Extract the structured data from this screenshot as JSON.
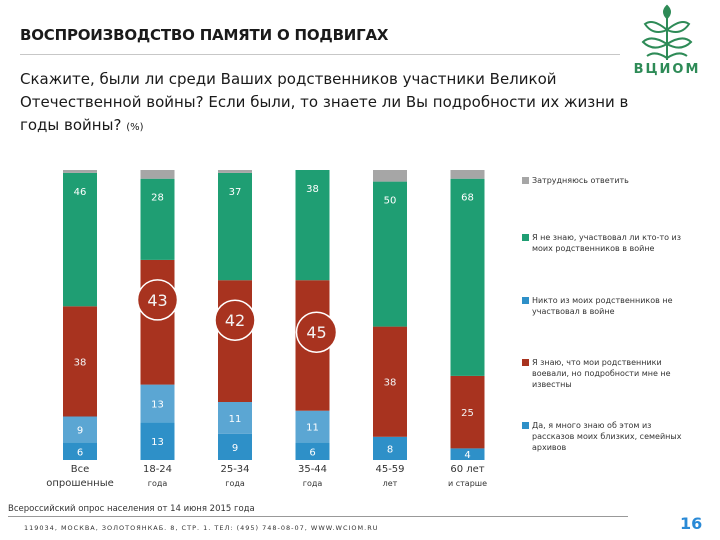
{
  "header": {
    "title": "ВОСПРОИЗВОДСТВО ПАМЯТИ О ПОДВИГАХ",
    "question": "Скажите, были ли среди Ваших родственников участники Великой Отечественной войны? Если были, то знаете ли Вы подробности их жизни в годы войны?",
    "unit": "(%)"
  },
  "logo": {
    "text": "ВЦИОМ"
  },
  "colors": {
    "gray": "#a6a6a6",
    "teal": "#1f9e73",
    "blue": "#2e90c8",
    "red": "#a8331f",
    "blue_light": "#5ba6d3"
  },
  "chart_data": {
    "type": "bar",
    "stacked": true,
    "categories": [
      [
        "Все",
        "опрошенные"
      ],
      [
        "18-24",
        "года"
      ],
      [
        "25-34",
        "года"
      ],
      [
        "35-44",
        "года"
      ],
      [
        "45-59",
        "лет"
      ],
      [
        "60 лет",
        "и старше"
      ]
    ],
    "series": [
      {
        "name": "Да, я много знаю об этом из рассказов моих близких, семейных архивов",
        "color": "#2e90c8",
        "values": [
          6,
          13,
          9,
          6,
          8,
          4
        ]
      },
      {
        "name": "Никто из моих родственников не участвовал в войне",
        "color": "#5ba6d3",
        "values": [
          9,
          13,
          11,
          11,
          0,
          0
        ]
      },
      {
        "name": "Я знаю, что мои родственники воевали, но подробности мне не известны",
        "color": "#a8331f",
        "values": [
          38,
          43,
          42,
          45,
          38,
          25
        ]
      },
      {
        "name": "Я не знаю, участвовал ли кто-то из моих родственников в войне",
        "color": "#1f9e73",
        "values": [
          46,
          28,
          37,
          38,
          50,
          68
        ]
      },
      {
        "name": "Затрудняюсь ответить",
        "color": "#a6a6a6",
        "values": [
          1,
          3,
          1,
          0,
          4,
          3
        ]
      }
    ],
    "labels": [
      [
        "6",
        "9",
        "38",
        "46"
      ],
      [
        "13",
        "13",
        "43",
        "28"
      ],
      [
        "9",
        "11",
        "42",
        "37"
      ],
      [
        "6",
        "11",
        "45",
        "38"
      ],
      [
        "8",
        "",
        "38",
        "50"
      ],
      [
        "4",
        "",
        "25",
        "68"
      ]
    ],
    "highlight_labels": [
      "",
      "43",
      "42",
      "45",
      "",
      ""
    ],
    "legend": [
      "Затрудняюсь ответить",
      "Я не знаю, участвовал ли кто-то из моих родственников в войне",
      "Никто из моих родственников не участвовал в войне",
      "Я знаю, что мои родственники воевали, но подробности мне не известны",
      "Да, я много знаю об этом из рассказов моих близких, семейных архивов"
    ],
    "legend_colors": [
      "#a6a6a6",
      "#1f9e73",
      "#2e90c8",
      "#a8331f",
      "#2e90c8"
    ],
    "ylim": [
      0,
      100
    ]
  },
  "footer": {
    "source": "Всероссийский опрос населения от 14 июня 2015 года",
    "address": "119034, МОСКВА, ЗОЛОТОЯНКАБ. 8, СТР. 1. ТЕЛ: (495) 748-08-07, WWW.WCIOM.RU",
    "page": "16"
  }
}
